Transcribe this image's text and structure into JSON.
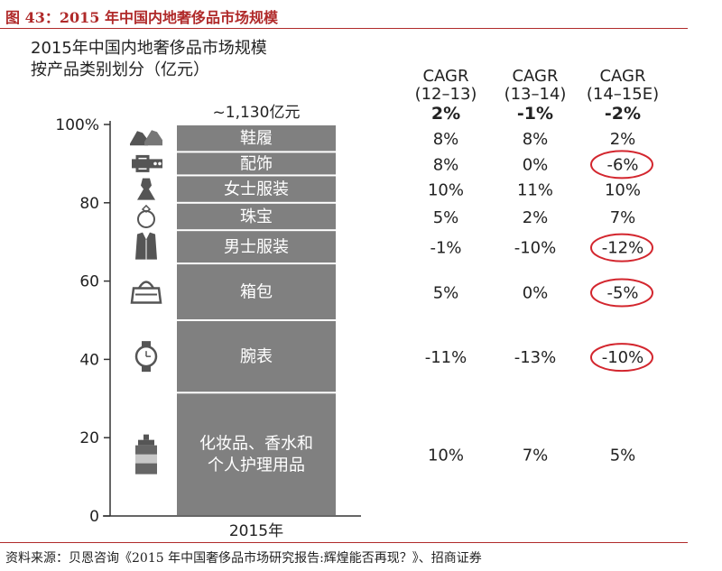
{
  "figure_title": "图 43：2015 年中国内地奢侈品市场规模",
  "subtitle_lines": [
    "2015年中国内地奢侈品市场规模",
    "按产品类别划分（亿元）"
  ],
  "source": "资料来源：贝恩咨询《2015 年中国奢侈品市场研究报告:辉煌能否再现？》、招商证券",
  "colors": {
    "bar": "#808080",
    "bar_text": "#ffffff",
    "circle": "#d3262e",
    "title": "#b02a2a"
  },
  "chart_data": {
    "type": "bar",
    "stacked": true,
    "x_category": "2015年",
    "total_label": "~1,130亿元",
    "ylim": [
      0,
      100
    ],
    "yticks": [
      0,
      20,
      40,
      60,
      80
    ],
    "ytick_labels": [
      "0",
      "20",
      "40",
      "60",
      "80"
    ],
    "ymax_label": "100%",
    "segments": [
      {
        "name": "化妆品、香水和\n个人护理用品",
        "share": 31.5,
        "icon": "lotion-bottle-icon",
        "cagr": [
          "10%",
          "7%",
          "5%"
        ],
        "circled": [
          false,
          false,
          false
        ]
      },
      {
        "name": "腕表",
        "share": 18.5,
        "icon": "watch-icon",
        "cagr": [
          "-11%",
          "-13%",
          "-10%"
        ],
        "circled": [
          false,
          false,
          true
        ]
      },
      {
        "name": "箱包",
        "share": 14.5,
        "icon": "handbag-icon",
        "cagr": [
          "5%",
          "0%",
          "-5%"
        ],
        "circled": [
          false,
          false,
          true
        ]
      },
      {
        "name": "男士服装",
        "share": 8.5,
        "icon": "jacket-icon",
        "cagr": [
          "-1%",
          "-10%",
          "-12%"
        ],
        "circled": [
          false,
          false,
          true
        ]
      },
      {
        "name": "珠宝",
        "share": 7.0,
        "icon": "ring-icon",
        "cagr": [
          "5%",
          "2%",
          "7%"
        ],
        "circled": [
          false,
          false,
          false
        ]
      },
      {
        "name": "女士服装",
        "share": 7.0,
        "icon": "dress-icon",
        "cagr": [
          "10%",
          "11%",
          "10%"
        ],
        "circled": [
          false,
          false,
          false
        ]
      },
      {
        "name": "配饰",
        "share": 6.0,
        "icon": "belt-icon",
        "cagr": [
          "8%",
          "0%",
          "-6%"
        ],
        "circled": [
          false,
          false,
          true
        ]
      },
      {
        "name": "鞋履",
        "share": 7.0,
        "icon": "shoes-icon",
        "cagr": [
          "8%",
          "8%",
          "2%"
        ],
        "circled": [
          false,
          false,
          false
        ]
      }
    ],
    "cagr_columns": [
      {
        "header": "CAGR",
        "period": "(12–13)",
        "total": "2%"
      },
      {
        "header": "CAGR",
        "period": "(13–14)",
        "total": "-1%"
      },
      {
        "header": "CAGR",
        "period": "(14–15E)",
        "total": "-2%"
      }
    ]
  }
}
